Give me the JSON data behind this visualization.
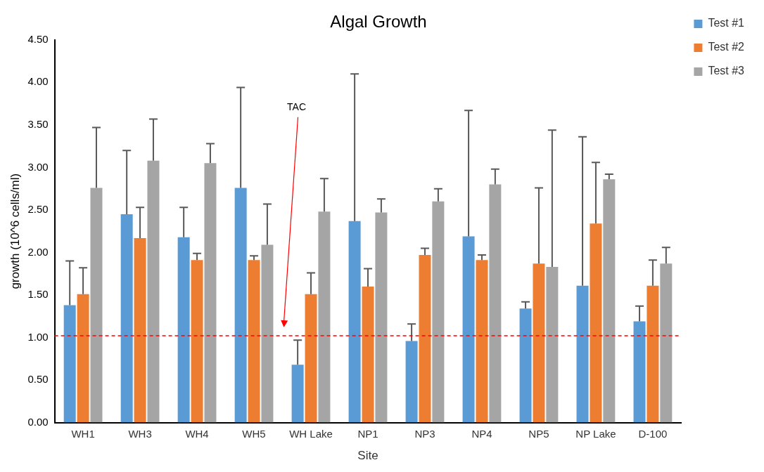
{
  "chart_data": {
    "type": "bar",
    "title": "Algal Growth",
    "xlabel": "Site",
    "ylabel": "growth (10^6 cells/ml)",
    "categories": [
      "WH1",
      "WH3",
      "WH4",
      "WH5",
      "WH Lake",
      "NP1",
      "NP3",
      "NP4",
      "NP5",
      "NP Lake",
      "D-100"
    ],
    "series": [
      {
        "name": "Test #1",
        "color": "#5b9bd5",
        "values": [
          1.38,
          2.45,
          2.18,
          2.76,
          0.68,
          2.37,
          0.96,
          2.19,
          1.34,
          1.61,
          1.19
        ],
        "errors": [
          [
            1.38,
            1.9
          ],
          [
            2.45,
            3.2
          ],
          [
            2.18,
            2.53
          ],
          [
            2.76,
            3.94
          ],
          [
            0.68,
            0.97
          ],
          [
            2.37,
            4.1
          ],
          [
            0.96,
            1.16
          ],
          [
            2.19,
            3.67
          ],
          [
            1.34,
            1.42
          ],
          [
            1.61,
            3.36
          ],
          [
            1.19,
            1.37
          ]
        ]
      },
      {
        "name": "Test #2",
        "color": "#ed7d31",
        "values": [
          1.51,
          2.17,
          1.91,
          1.91,
          1.51,
          1.6,
          1.97,
          1.91,
          1.87,
          2.34,
          1.61
        ],
        "errors": [
          [
            1.51,
            1.82
          ],
          [
            2.17,
            2.53
          ],
          [
            1.91,
            1.99
          ],
          [
            1.91,
            1.96
          ],
          [
            1.51,
            1.76
          ],
          [
            1.6,
            1.81
          ],
          [
            1.97,
            2.05
          ],
          [
            1.91,
            1.97
          ],
          [
            1.87,
            2.76
          ],
          [
            2.34,
            3.06
          ],
          [
            1.61,
            1.91
          ]
        ]
      },
      {
        "name": "Test #3",
        "color": "#a5a5a5",
        "values": [
          2.76,
          3.08,
          3.05,
          2.09,
          2.48,
          2.47,
          2.6,
          2.8,
          1.83,
          2.86,
          1.87
        ],
        "errors": [
          [
            2.76,
            3.47
          ],
          [
            3.08,
            3.57
          ],
          [
            3.05,
            3.28
          ],
          [
            2.09,
            2.57
          ],
          [
            2.48,
            2.87
          ],
          [
            2.47,
            2.63
          ],
          [
            2.6,
            2.75
          ],
          [
            2.8,
            2.98
          ],
          [
            1.83,
            3.44
          ],
          [
            2.86,
            2.92
          ],
          [
            1.87,
            2.06
          ]
        ]
      }
    ],
    "ylim": [
      0,
      4.5
    ],
    "yticks": [
      {
        "value": 0,
        "label": "0.00"
      },
      {
        "value": 0.5,
        "label": "0.50"
      },
      {
        "value": 1,
        "label": "1.00"
      },
      {
        "value": 1.5,
        "label": "1.50"
      },
      {
        "value": 2,
        "label": "2.00"
      },
      {
        "value": 2.5,
        "label": "2.50"
      },
      {
        "value": 3,
        "label": "3.00"
      },
      {
        "value": 3.5,
        "label": "3.50"
      },
      {
        "value": 4,
        "label": "4.00"
      },
      {
        "value": 4.5,
        "label": "4.50"
      }
    ],
    "ref_lines": [
      {
        "axis": "y",
        "value": 1.02,
        "color": "#ff0000",
        "line_style": "dashed"
      }
    ],
    "annotations": [
      "TAC"
    ],
    "grid": false,
    "legend": "top right"
  }
}
